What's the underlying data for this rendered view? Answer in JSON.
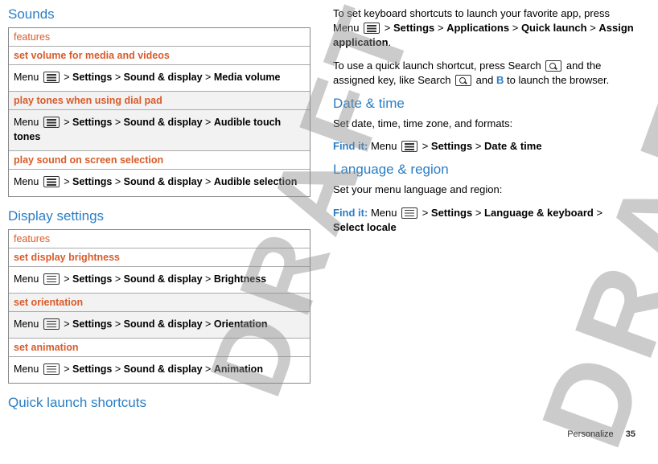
{
  "watermark": "DRAFT",
  "left": {
    "sounds": {
      "heading": "Sounds",
      "tableHeader": "features",
      "rows": [
        {
          "sub": "set volume for media and videos",
          "pre": "Menu ",
          "p1": "Settings",
          "p2": "Sound & display",
          "p3": "Media volume"
        },
        {
          "sub": "play tones when using dial pad",
          "pre": "Menu ",
          "p1": "Settings",
          "p2": "Sound & display",
          "p3": "Audible touch tones"
        },
        {
          "sub": "play sound on screen selection",
          "pre": "Menu ",
          "p1": "Settings",
          "p2": "Sound & display",
          "p3": "Audible selection"
        }
      ]
    },
    "display": {
      "heading": "Display settings",
      "tableHeader": "features",
      "rows": [
        {
          "sub": "set display brightness",
          "pre": "Menu ",
          "p1": "Settings",
          "p2": "Sound & display",
          "p3": "Brightness"
        },
        {
          "sub": "set orientation",
          "pre": "Menu ",
          "p1": "Settings",
          "p2": "Sound & display",
          "p3": " Orientation"
        },
        {
          "sub": "set animation",
          "pre": "Menu ",
          "p1": "Settings",
          "p2": "Sound & display",
          "p3": "Animation"
        }
      ]
    },
    "quick": {
      "heading": "Quick launch shortcuts"
    }
  },
  "right": {
    "quickPara1a": "To set keyboard shortcuts to launch your favorite app, press Menu ",
    "quickPath1": "Settings",
    "quickPath2": "Applications",
    "quickPath3": "Quick launch",
    "quickPath4": "Assign application",
    "quickPara2a": "To use a quick launch shortcut, press Search ",
    "quickPara2b": " and the assigned key, like Search ",
    "quickPara2c": " and ",
    "quickB": "B",
    "quickPara2d": " to launch the browser.",
    "date": {
      "heading": "Date & time",
      "intro": "Set date, time, time zone, and formats:",
      "findit": "Find it:",
      "pre": " Menu ",
      "p1": "Settings",
      "p2": "Date & time"
    },
    "lang": {
      "heading": "Language & region",
      "intro": "Set your menu language and region:",
      "findit": "Find it:",
      "pre": " Menu ",
      "p1": "Settings",
      "p2": "Language & keyboard",
      "p3": "Select locale"
    }
  },
  "footer": {
    "section": "Personalize",
    "page": "35"
  }
}
